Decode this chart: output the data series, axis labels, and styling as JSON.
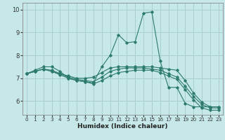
{
  "xlabel": "Humidex (Indice chaleur)",
  "bg_color": "#c6e8e8",
  "grid_color": "#a8cece",
  "line_color": "#2d7a6e",
  "xlim": [
    -0.5,
    23.5
  ],
  "ylim": [
    5.4,
    10.3
  ],
  "xticks": [
    0,
    1,
    2,
    3,
    4,
    5,
    6,
    7,
    8,
    9,
    10,
    11,
    12,
    13,
    14,
    15,
    16,
    17,
    18,
    19,
    20,
    21,
    22,
    23
  ],
  "yticks": [
    6,
    7,
    8,
    9,
    10
  ],
  "series": [
    [
      7.2,
      7.35,
      7.5,
      7.5,
      7.3,
      7.0,
      6.9,
      6.85,
      6.8,
      7.5,
      8.0,
      8.9,
      8.55,
      8.6,
      9.85,
      9.9,
      7.75,
      6.6,
      6.6,
      5.9,
      5.75,
      5.75,
      5.75,
      5.75
    ],
    [
      7.2,
      7.3,
      7.4,
      7.3,
      7.2,
      7.1,
      7.0,
      7.0,
      7.05,
      7.25,
      7.45,
      7.5,
      7.5,
      7.5,
      7.5,
      7.5,
      7.45,
      7.4,
      7.35,
      6.9,
      6.35,
      5.95,
      5.75,
      5.75
    ],
    [
      7.2,
      7.3,
      7.4,
      7.35,
      7.2,
      7.05,
      6.95,
      6.9,
      6.85,
      7.05,
      7.3,
      7.4,
      7.45,
      7.45,
      7.45,
      7.4,
      7.35,
      7.2,
      7.05,
      6.65,
      6.2,
      5.85,
      5.7,
      5.7
    ],
    [
      7.2,
      7.3,
      7.4,
      7.3,
      7.15,
      7.0,
      6.9,
      6.85,
      6.75,
      6.9,
      7.1,
      7.25,
      7.3,
      7.35,
      7.35,
      7.35,
      7.25,
      7.1,
      6.95,
      6.5,
      6.05,
      5.7,
      5.6,
      5.6
    ]
  ]
}
